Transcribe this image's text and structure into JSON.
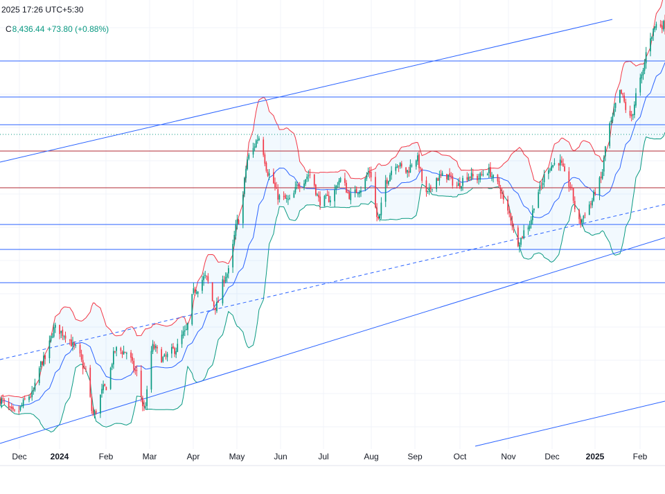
{
  "header": {
    "timestamp": "2025 17:26 UTC+5:30",
    "close_label": "C",
    "close_value": "8,436.44",
    "change": "+73.80",
    "change_pct": "(+0.88%)"
  },
  "colors": {
    "up": "#089981",
    "down": "#f23645",
    "candle_up": "#089981",
    "candle_down": "#f23645",
    "bb_upper": "#f23645",
    "bb_lower": "#089981",
    "bb_basis": "#2962ff",
    "bb_fill": "#2196f3",
    "support_line": "#2962ff",
    "resistance_line": "#b22833",
    "grid": "#f0f3fa",
    "axis_text": "#131722"
  },
  "chart_data": {
    "type": "candlestick",
    "timeframe": "daily",
    "x_axis_labels": [
      "Dec",
      "2024",
      "Feb",
      "Mar",
      "Apr",
      "May",
      "Jun",
      "Jul",
      "Aug",
      "Sep",
      "Oct",
      "Nov",
      "Dec",
      "2025",
      "Feb"
    ],
    "price_range": [
      5100,
      8500
    ],
    "indicators": [
      "bollinger_bands"
    ],
    "grid": true,
    "legend": "none",
    "path_points": [
      {
        "x": "2023-11-20",
        "y": 5490
      },
      {
        "x": "2023-12-01",
        "y": 5380
      },
      {
        "x": "2023-12-12",
        "y": 5520
      },
      {
        "x": "2023-12-21",
        "y": 5800
      },
      {
        "x": "2023-12-29",
        "y": 6050
      },
      {
        "x": "2024-01-05",
        "y": 6000
      },
      {
        "x": "2024-01-12",
        "y": 5890
      },
      {
        "x": "2024-01-19",
        "y": 5720
      },
      {
        "x": "2024-01-24",
        "y": 5370
      },
      {
        "x": "2024-02-01",
        "y": 5580
      },
      {
        "x": "2024-02-09",
        "y": 5880
      },
      {
        "x": "2024-02-16",
        "y": 5860
      },
      {
        "x": "2024-02-23",
        "y": 5700
      },
      {
        "x": "2024-02-28",
        "y": 5420
      },
      {
        "x": "2024-03-05",
        "y": 5900
      },
      {
        "x": "2024-03-12",
        "y": 5810
      },
      {
        "x": "2024-03-20",
        "y": 5880
      },
      {
        "x": "2024-03-27",
        "y": 6010
      },
      {
        "x": "2024-04-03",
        "y": 6350
      },
      {
        "x": "2024-04-10",
        "y": 6450
      },
      {
        "x": "2024-04-17",
        "y": 6220
      },
      {
        "x": "2024-04-25",
        "y": 6480
      },
      {
        "x": "2024-05-03",
        "y": 6900
      },
      {
        "x": "2024-05-10",
        "y": 7400
      },
      {
        "x": "2024-05-17",
        "y": 7550
      },
      {
        "x": "2024-05-24",
        "y": 7260
      },
      {
        "x": "2024-05-31",
        "y": 7080
      },
      {
        "x": "2024-06-07",
        "y": 7050
      },
      {
        "x": "2024-06-14",
        "y": 7190
      },
      {
        "x": "2024-06-21",
        "y": 7260
      },
      {
        "x": "2024-06-28",
        "y": 7050
      },
      {
        "x": "2024-07-05",
        "y": 7070
      },
      {
        "x": "2024-07-12",
        "y": 7220
      },
      {
        "x": "2024-07-19",
        "y": 7090
      },
      {
        "x": "2024-07-26",
        "y": 7150
      },
      {
        "x": "2024-08-01",
        "y": 7280
      },
      {
        "x": "2024-08-07",
        "y": 6900
      },
      {
        "x": "2024-08-12",
        "y": 7210
      },
      {
        "x": "2024-08-19",
        "y": 7350
      },
      {
        "x": "2024-08-26",
        "y": 7280
      },
      {
        "x": "2024-09-02",
        "y": 7390
      },
      {
        "x": "2024-09-09",
        "y": 7100
      },
      {
        "x": "2024-09-16",
        "y": 7230
      },
      {
        "x": "2024-09-23",
        "y": 7250
      },
      {
        "x": "2024-09-30",
        "y": 7170
      },
      {
        "x": "2024-10-07",
        "y": 7250
      },
      {
        "x": "2024-10-14",
        "y": 7230
      },
      {
        "x": "2024-10-21",
        "y": 7290
      },
      {
        "x": "2024-10-28",
        "y": 7180
      },
      {
        "x": "2024-11-04",
        "y": 6960
      },
      {
        "x": "2024-11-11",
        "y": 6730
      },
      {
        "x": "2024-11-18",
        "y": 6860
      },
      {
        "x": "2024-11-25",
        "y": 7130
      },
      {
        "x": "2024-12-02",
        "y": 7320
      },
      {
        "x": "2024-12-09",
        "y": 7360
      },
      {
        "x": "2024-12-16",
        "y": 7180
      },
      {
        "x": "2024-12-23",
        "y": 6880
      },
      {
        "x": "2024-12-30",
        "y": 7020
      },
      {
        "x": "2025-01-06",
        "y": 7200
      },
      {
        "x": "2025-01-13",
        "y": 7650
      },
      {
        "x": "2025-01-20",
        "y": 7900
      },
      {
        "x": "2025-01-27",
        "y": 7700
      },
      {
        "x": "2025-02-03",
        "y": 8000
      },
      {
        "x": "2025-02-10",
        "y": 8350
      },
      {
        "x": "2025-02-14",
        "y": 8436
      }
    ]
  }
}
